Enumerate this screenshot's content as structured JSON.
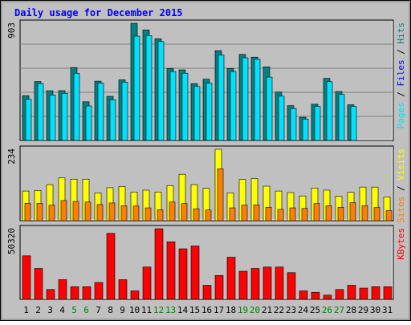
{
  "title": "Daily usage for December 2015",
  "colors": {
    "background": "#c0c0c0",
    "title": "#0000ff",
    "hits": "#008080",
    "files": "#0000ff",
    "pages": "#00e0ff",
    "visits": "#ffff00",
    "sites": "#ff8000",
    "kbytes": "#ff0000",
    "weekend_day": "#008000",
    "weekday": "#000000"
  },
  "chart_data": [
    {
      "type": "bar",
      "panel": "hits-files-pages",
      "ymax_label": "903",
      "ylim": [
        0,
        903
      ],
      "legend": [
        {
          "text": "Hits",
          "color": "#008080"
        },
        {
          "text": "Files",
          "color": "#0000ff"
        },
        {
          "text": "Pages",
          "color": "#00e0ff"
        }
      ],
      "legend_separator": " / ",
      "categories": [
        "1",
        "2",
        "3",
        "4",
        "5",
        "6",
        "7",
        "8",
        "9",
        "10",
        "11",
        "12",
        "13",
        "14",
        "15",
        "16",
        "17",
        "18",
        "19",
        "20",
        "21",
        "22",
        "23",
        "24",
        "25",
        "26",
        "27",
        "28",
        "29",
        "30",
        "31"
      ],
      "series": [
        {
          "name": "Hits",
          "values": [
            345,
            454,
            383,
            384,
            562,
            298,
            457,
            340,
            467,
            903,
            852,
            784,
            554,
            544,
            438,
            472,
            692,
            554,
            663,
            642,
            567,
            373,
            268,
            179,
            279,
            478,
            377,
            275,
            0,
            0,
            0
          ]
        },
        {
          "name": "Files",
          "values": [
            0,
            0,
            0,
            0,
            0,
            0,
            0,
            0,
            0,
            0,
            0,
            0,
            0,
            0,
            0,
            0,
            0,
            0,
            0,
            0,
            0,
            0,
            0,
            0,
            0,
            0,
            0,
            0,
            0,
            0,
            0
          ]
        },
        {
          "name": "Pages",
          "values": [
            317,
            439,
            350,
            363,
            517,
            266,
            442,
            314,
            449,
            804,
            808,
            762,
            531,
            518,
            416,
            441,
            658,
            531,
            637,
            626,
            488,
            341,
            246,
            165,
            262,
            453,
            355,
            262,
            0,
            0,
            0
          ]
        }
      ]
    },
    {
      "type": "bar",
      "panel": "visits-sites",
      "ymax_label": "234",
      "ylim": [
        0,
        234
      ],
      "legend": [
        {
          "text": "Visits",
          "color": "#ffff00"
        },
        {
          "text": "Sites",
          "color": "#ff8000"
        }
      ],
      "legend_separator": " / ",
      "categories": [
        "1",
        "2",
        "3",
        "4",
        "5",
        "6",
        "7",
        "8",
        "9",
        "10",
        "11",
        "12",
        "13",
        "14",
        "15",
        "16",
        "17",
        "18",
        "19",
        "20",
        "21",
        "22",
        "23",
        "24",
        "25",
        "26",
        "27",
        "28",
        "29",
        "30",
        "31"
      ],
      "series": [
        {
          "name": "Visits",
          "values": [
            97,
            99,
            118,
            140,
            136,
            136,
            91,
            108,
            112,
            94,
            100,
            94,
            115,
            152,
            118,
            106,
            234,
            91,
            135,
            138,
            113,
            97,
            92,
            81,
            107,
            100,
            80,
            93,
            110,
            110,
            78
          ]
        },
        {
          "name": "Sites",
          "values": [
            57,
            57,
            51,
            66,
            63,
            61,
            53,
            58,
            49,
            48,
            42,
            36,
            61,
            56,
            39,
            35,
            170,
            42,
            51,
            52,
            44,
            37,
            42,
            40,
            56,
            49,
            44,
            59,
            49,
            43,
            33
          ]
        }
      ]
    },
    {
      "type": "bar",
      "panel": "kbytes",
      "ymax_label": "50320",
      "ylim": [
        0,
        50320
      ],
      "legend": [
        {
          "text": "KBytes",
          "color": "#ff0000"
        }
      ],
      "categories": [
        "1",
        "2",
        "3",
        "4",
        "5",
        "6",
        "7",
        "8",
        "9",
        "10",
        "11",
        "12",
        "13",
        "14",
        "15",
        "16",
        "17",
        "18",
        "19",
        "20",
        "21",
        "22",
        "23",
        "24",
        "25",
        "26",
        "27",
        "28",
        "29",
        "30",
        "31"
      ],
      "series": [
        {
          "name": "KBytes",
          "values": [
            31000,
            22000,
            7000,
            14000,
            9000,
            9000,
            12000,
            47000,
            14000,
            6000,
            23000,
            50320,
            41000,
            36000,
            38000,
            10000,
            17000,
            30000,
            20000,
            22000,
            23000,
            23000,
            19000,
            6000,
            5000,
            3000,
            7000,
            10000,
            8000,
            9000,
            9000
          ]
        }
      ]
    }
  ],
  "x_labels": [
    {
      "text": "1",
      "weekend": false
    },
    {
      "text": "2",
      "weekend": false
    },
    {
      "text": "3",
      "weekend": false
    },
    {
      "text": "4",
      "weekend": false
    },
    {
      "text": "5",
      "weekend": true
    },
    {
      "text": "6",
      "weekend": true
    },
    {
      "text": "7",
      "weekend": false
    },
    {
      "text": "8",
      "weekend": false
    },
    {
      "text": "9",
      "weekend": false
    },
    {
      "text": "10",
      "weekend": false
    },
    {
      "text": "11",
      "weekend": false
    },
    {
      "text": "12",
      "weekend": true
    },
    {
      "text": "13",
      "weekend": true
    },
    {
      "text": "14",
      "weekend": false
    },
    {
      "text": "15",
      "weekend": false
    },
    {
      "text": "16",
      "weekend": false
    },
    {
      "text": "17",
      "weekend": false
    },
    {
      "text": "18",
      "weekend": false
    },
    {
      "text": "19",
      "weekend": true
    },
    {
      "text": "20",
      "weekend": true
    },
    {
      "text": "21",
      "weekend": false
    },
    {
      "text": "22",
      "weekend": false
    },
    {
      "text": "23",
      "weekend": false
    },
    {
      "text": "24",
      "weekend": false
    },
    {
      "text": "25",
      "weekend": false
    },
    {
      "text": "26",
      "weekend": true
    },
    {
      "text": "27",
      "weekend": true
    },
    {
      "text": "28",
      "weekend": false
    },
    {
      "text": "29",
      "weekend": false
    },
    {
      "text": "30",
      "weekend": false
    },
    {
      "text": "31",
      "weekend": false
    }
  ]
}
